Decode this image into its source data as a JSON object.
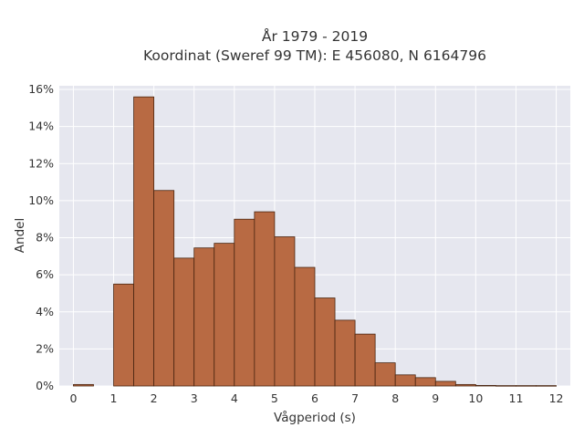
{
  "chart_data": {
    "type": "bar",
    "title_lines": [
      "År 1979 - 2019",
      "Koordinat (Sweref 99 TM): E 456080, N 6164796"
    ],
    "xlabel": "Vågperiod (s)",
    "ylabel": "Andel",
    "xlim": [
      -0.35,
      12.35
    ],
    "ylim": [
      0,
      16.2
    ],
    "x_ticks": [
      0,
      1,
      2,
      3,
      4,
      5,
      6,
      7,
      8,
      9,
      10,
      11,
      12
    ],
    "x_tick_labels": [
      "0",
      "1",
      "2",
      "3",
      "4",
      "5",
      "6",
      "7",
      "8",
      "9",
      "10",
      "11",
      "12"
    ],
    "y_ticks": [
      0,
      2,
      4,
      6,
      8,
      10,
      12,
      14,
      16
    ],
    "y_tick_labels": [
      "0%",
      "2%",
      "4%",
      "6%",
      "8%",
      "10%",
      "12%",
      "14%",
      "16%"
    ],
    "bin_width": 0.5,
    "bins": [
      {
        "start": 0.0,
        "value": 0.08
      },
      {
        "start": 0.5,
        "value": 0.0
      },
      {
        "start": 1.0,
        "value": 5.5
      },
      {
        "start": 1.5,
        "value": 15.6
      },
      {
        "start": 2.0,
        "value": 10.55
      },
      {
        "start": 2.5,
        "value": 6.9
      },
      {
        "start": 3.0,
        "value": 7.45
      },
      {
        "start": 3.5,
        "value": 7.7
      },
      {
        "start": 4.0,
        "value": 9.0
      },
      {
        "start": 4.5,
        "value": 9.4
      },
      {
        "start": 5.0,
        "value": 8.05
      },
      {
        "start": 5.5,
        "value": 6.4
      },
      {
        "start": 6.0,
        "value": 4.75
      },
      {
        "start": 6.5,
        "value": 3.55
      },
      {
        "start": 7.0,
        "value": 2.8
      },
      {
        "start": 7.5,
        "value": 1.25
      },
      {
        "start": 8.0,
        "value": 0.6
      },
      {
        "start": 8.5,
        "value": 0.45
      },
      {
        "start": 9.0,
        "value": 0.25
      },
      {
        "start": 9.5,
        "value": 0.08
      },
      {
        "start": 10.0,
        "value": 0.03
      },
      {
        "start": 10.5,
        "value": 0.02
      },
      {
        "start": 11.0,
        "value": 0.02
      },
      {
        "start": 11.5,
        "value": 0.02
      }
    ],
    "grid": true,
    "colors": {
      "bar_fill": "#b86a43",
      "bar_edge": "#4a2510",
      "plot_background": "#e6e7ef",
      "grid": "#ffffff",
      "text": "#333333"
    }
  }
}
